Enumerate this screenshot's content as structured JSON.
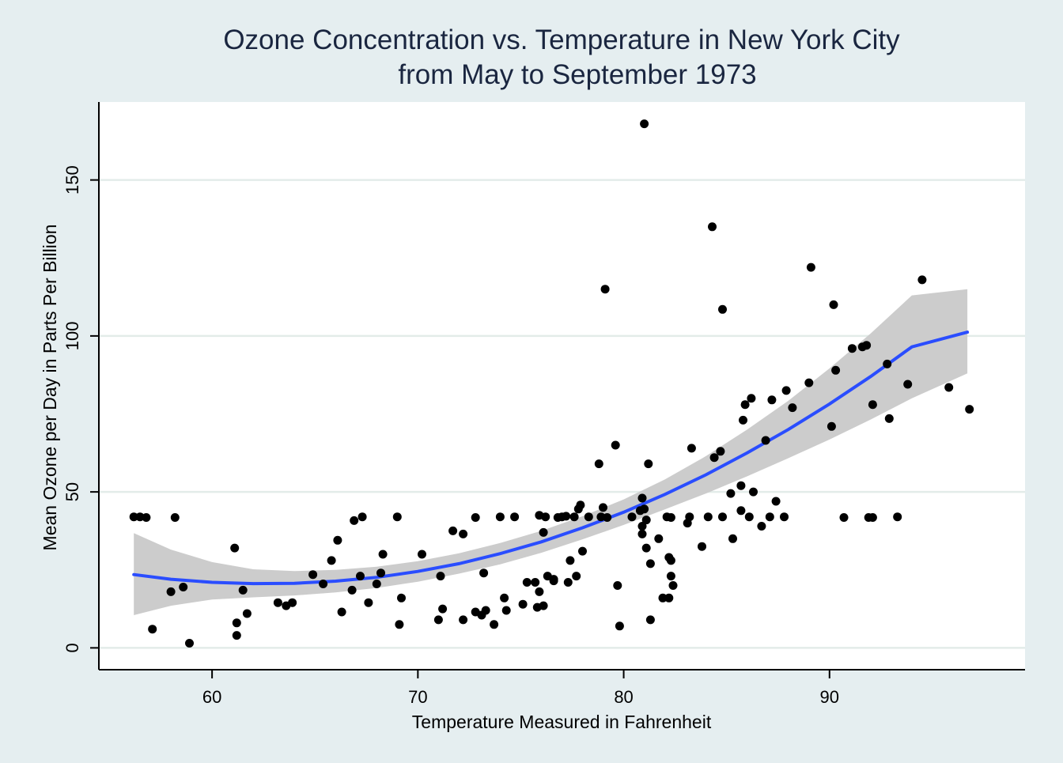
{
  "colors": {
    "background": "#e5eef0",
    "plot_background": "#ffffff",
    "gridline": "#e3ece9",
    "title_text": "#1a2640",
    "point": "#000000",
    "fit_line": "#2a4dff",
    "confidence_band": "#cccccc"
  },
  "chart_data": {
    "type": "scatter",
    "title": "Ozone Concentration vs. Temperature in New York City",
    "subtitle": "from May to September 1973",
    "xlabel": "Temperature Measured in Fahrenheit",
    "ylabel": "Mean Ozone per Day in Parts Per Billion",
    "xlim": [
      54.5,
      99.5
    ],
    "ylim": [
      -7,
      175
    ],
    "xticks": [
      "60",
      "70",
      "80",
      "90"
    ],
    "yticks": [
      "0",
      "50",
      "100",
      "150"
    ],
    "grid": true,
    "legend": "none",
    "points": [
      [
        56.2,
        42
      ],
      [
        56.5,
        42
      ],
      [
        56.8,
        41.8
      ],
      [
        57.1,
        6
      ],
      [
        58,
        18
      ],
      [
        58.2,
        41.8
      ],
      [
        58.6,
        19.5
      ],
      [
        58.9,
        1.5
      ],
      [
        61.1,
        32
      ],
      [
        61.2,
        8
      ],
      [
        61.2,
        4
      ],
      [
        61.5,
        18.5
      ],
      [
        61.7,
        11
      ],
      [
        63.2,
        14.5
      ],
      [
        63.6,
        13.5
      ],
      [
        63.9,
        14.5
      ],
      [
        64.9,
        23.5
      ],
      [
        65.4,
        20.5
      ],
      [
        65.8,
        28
      ],
      [
        66.1,
        34.5
      ],
      [
        66.3,
        11.5
      ],
      [
        66.8,
        18.5
      ],
      [
        66.9,
        40.8
      ],
      [
        67.2,
        23
      ],
      [
        67.3,
        42
      ],
      [
        67.6,
        14.5
      ],
      [
        68,
        20.5
      ],
      [
        68.2,
        24
      ],
      [
        68.3,
        30
      ],
      [
        69,
        42
      ],
      [
        69.1,
        7.5
      ],
      [
        69.2,
        16
      ],
      [
        70.2,
        30
      ],
      [
        71,
        9
      ],
      [
        71.1,
        23
      ],
      [
        71.2,
        12.5
      ],
      [
        71.7,
        37.5
      ],
      [
        72.2,
        9
      ],
      [
        72.2,
        36.5
      ],
      [
        72.8,
        41.8
      ],
      [
        72.8,
        11.5
      ],
      [
        73.1,
        10.5
      ],
      [
        73.2,
        24
      ],
      [
        73.3,
        12
      ],
      [
        73.7,
        7.5
      ],
      [
        74,
        42
      ],
      [
        74.2,
        16
      ],
      [
        74.3,
        12
      ],
      [
        74.7,
        42
      ],
      [
        75.1,
        14
      ],
      [
        75.3,
        21
      ],
      [
        75.7,
        21
      ],
      [
        75.8,
        13
      ],
      [
        75.9,
        18
      ],
      [
        75.9,
        42.5
      ],
      [
        76.1,
        13.5
      ],
      [
        76.1,
        37
      ],
      [
        76.2,
        42
      ],
      [
        76.3,
        23
      ],
      [
        76.6,
        22
      ],
      [
        76.6,
        21.5
      ],
      [
        76.8,
        41.8
      ],
      [
        77,
        42
      ],
      [
        77.2,
        42.2
      ],
      [
        77.3,
        21
      ],
      [
        77.4,
        28
      ],
      [
        77.6,
        42
      ],
      [
        77.7,
        23
      ],
      [
        77.8,
        44.5
      ],
      [
        77.9,
        45.8
      ],
      [
        78,
        31
      ],
      [
        78.3,
        42
      ],
      [
        78.8,
        59
      ],
      [
        78.9,
        42
      ],
      [
        79,
        45
      ],
      [
        79.1,
        115
      ],
      [
        79.2,
        41.8
      ],
      [
        79.6,
        65
      ],
      [
        79.7,
        20
      ],
      [
        79.8,
        7
      ],
      [
        80.4,
        42
      ],
      [
        80.8,
        44
      ],
      [
        80.9,
        36.5
      ],
      [
        80.9,
        39
      ],
      [
        80.9,
        48
      ],
      [
        81,
        44.5
      ],
      [
        81,
        168
      ],
      [
        81.1,
        32
      ],
      [
        81.1,
        41
      ],
      [
        81.2,
        59
      ],
      [
        81.3,
        27
      ],
      [
        81.3,
        9
      ],
      [
        81.7,
        35
      ],
      [
        81.9,
        16
      ],
      [
        82.1,
        42
      ],
      [
        82.2,
        16
      ],
      [
        82.2,
        29
      ],
      [
        82.3,
        23
      ],
      [
        82.3,
        41.8
      ],
      [
        82.4,
        20
      ],
      [
        82.3,
        28
      ],
      [
        83.1,
        40
      ],
      [
        83.2,
        42
      ],
      [
        83.3,
        64
      ],
      [
        83.8,
        32.5
      ],
      [
        84.1,
        42
      ],
      [
        84.3,
        135
      ],
      [
        84.4,
        61
      ],
      [
        84.7,
        63
      ],
      [
        84.8,
        108.5
      ],
      [
        84.8,
        42
      ],
      [
        85.2,
        49.5
      ],
      [
        85.3,
        35
      ],
      [
        85.7,
        52
      ],
      [
        85.7,
        44
      ],
      [
        85.8,
        73
      ],
      [
        85.9,
        78
      ],
      [
        86.1,
        42
      ],
      [
        86.2,
        80
      ],
      [
        86.3,
        50
      ],
      [
        86.7,
        39
      ],
      [
        86.9,
        66.5
      ],
      [
        87.1,
        42
      ],
      [
        87.2,
        79.5
      ],
      [
        87.4,
        47
      ],
      [
        87.8,
        42
      ],
      [
        87.9,
        82.5
      ],
      [
        88.2,
        77
      ],
      [
        89,
        85
      ],
      [
        89.1,
        122
      ],
      [
        90.1,
        71
      ],
      [
        90.2,
        110
      ],
      [
        90.3,
        89
      ],
      [
        90.7,
        41.8
      ],
      [
        91.1,
        96
      ],
      [
        91.6,
        96.5
      ],
      [
        91.8,
        97
      ],
      [
        91.9,
        41.8
      ],
      [
        92.1,
        41.8
      ],
      [
        92.1,
        78
      ],
      [
        92.8,
        91
      ],
      [
        92.9,
        73.5
      ],
      [
        93.3,
        42
      ],
      [
        93.8,
        84.5
      ],
      [
        94.5,
        118
      ],
      [
        95.8,
        83.5
      ],
      [
        96.8,
        76.5
      ]
    ],
    "fit_curve": [
      [
        56.2,
        23.5
      ],
      [
        58,
        22
      ],
      [
        60,
        21
      ],
      [
        62,
        20.6
      ],
      [
        64,
        20.7
      ],
      [
        66,
        21.4
      ],
      [
        68,
        22.6
      ],
      [
        70,
        24.5
      ],
      [
        72,
        27
      ],
      [
        74,
        30.2
      ],
      [
        76,
        34
      ],
      [
        78,
        38.5
      ],
      [
        80,
        43.5
      ],
      [
        82,
        49.2
      ],
      [
        84,
        55.5
      ],
      [
        86,
        62.5
      ],
      [
        88,
        70
      ],
      [
        90,
        78.2
      ],
      [
        92,
        87
      ],
      [
        94,
        96.5
      ],
      [
        96.7,
        101.2
      ]
    ],
    "confidence_band": [
      [
        56.2,
        10.5,
        36.8
      ],
      [
        58,
        13.5,
        31.5
      ],
      [
        60,
        15.5,
        27.5
      ],
      [
        62,
        16.2,
        25.2
      ],
      [
        64,
        16.8,
        24.6
      ],
      [
        66,
        17.8,
        25
      ],
      [
        68,
        19.2,
        26
      ],
      [
        70,
        21.2,
        27.8
      ],
      [
        72,
        23.8,
        30.3
      ],
      [
        74,
        26.8,
        33.6
      ],
      [
        76,
        30.5,
        37.5
      ],
      [
        78,
        34.8,
        42.2
      ],
      [
        80,
        39.4,
        47.6
      ],
      [
        82,
        44.4,
        54
      ],
      [
        84,
        49.5,
        61.5
      ],
      [
        86,
        55,
        70
      ],
      [
        88,
        60.8,
        79.2
      ],
      [
        90,
        66.8,
        89.6
      ],
      [
        92,
        73.2,
        100.8
      ],
      [
        94,
        80,
        113
      ],
      [
        96.7,
        88,
        115
      ]
    ]
  }
}
